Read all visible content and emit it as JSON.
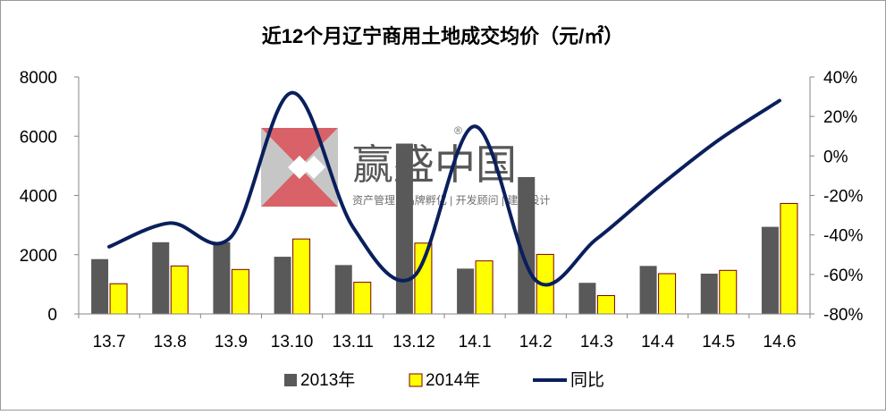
{
  "chart_data": {
    "type": "bar",
    "title": "近12个月辽宁商用土地成交均价（元/㎡）",
    "categories": [
      "13.7",
      "13.8",
      "13.9",
      "13.10",
      "13.11",
      "13.12",
      "14.1",
      "14.2",
      "14.3",
      "14.4",
      "14.5",
      "14.6"
    ],
    "series": [
      {
        "name": "2013年",
        "type": "bar",
        "axis": "left",
        "color": "#595959",
        "values": [
          1850,
          2420,
          2420,
          1930,
          1650,
          5750,
          1530,
          4620,
          1050,
          1620,
          1360,
          2940
        ]
      },
      {
        "name": "2014年",
        "type": "bar",
        "axis": "left",
        "color": "#ffff00",
        "values": [
          1020,
          1620,
          1500,
          2530,
          1070,
          2390,
          1790,
          2010,
          620,
          1360,
          1470,
          3730
        ]
      },
      {
        "name": "同比",
        "type": "line",
        "axis": "right",
        "color": "#0a1f5c",
        "values": [
          -0.46,
          -0.34,
          -0.41,
          0.32,
          -0.36,
          -0.61,
          0.15,
          -0.63,
          -0.42,
          -0.16,
          0.08,
          0.28
        ]
      }
    ],
    "y_left": {
      "min": 0,
      "max": 8000,
      "ticks": [
        "0",
        "2000",
        "4000",
        "6000",
        "8000"
      ]
    },
    "y_right": {
      "min": -0.8,
      "max": 0.4,
      "ticks": [
        "-80%",
        "-60%",
        "-40%",
        "-20%",
        "0%",
        "20%",
        "40%"
      ]
    },
    "legend": {
      "position": "bottom"
    },
    "grid": false
  },
  "watermark": {
    "title": "赢盛中国",
    "subtitle": "资产管理 | 品牌孵化 | 开发顾问 | 建筑设计",
    "mark": "®"
  }
}
